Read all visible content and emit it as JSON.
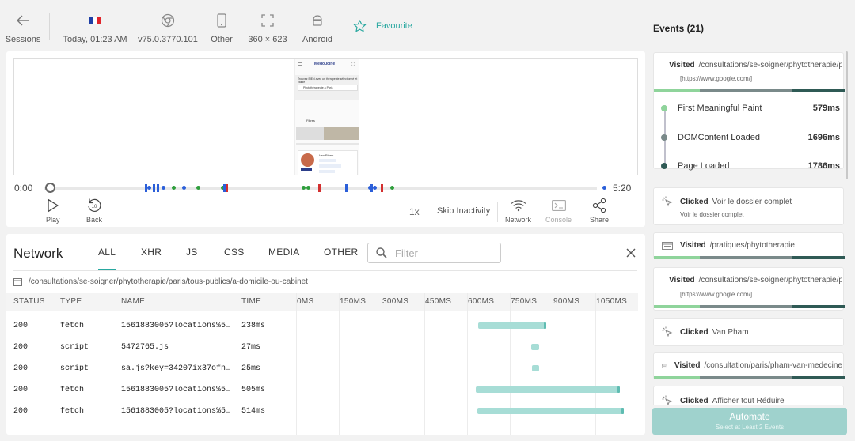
{
  "topbar": {
    "sessions_label": "Sessions",
    "date_label": "Today, 01:23 AM",
    "browser_label": "v75.0.3770.101",
    "device_label": "Other",
    "resolution_label": "360 × 623",
    "os_label": "Android",
    "favourite_label": "Favourite"
  },
  "player": {
    "time_start": "0:00",
    "time_end": "5:20",
    "play_label": "Play",
    "back_label": "Back",
    "back_seconds": "10",
    "speed_label": "1x",
    "skip_label": "Skip Inactivity",
    "network_label": "Network",
    "console_label": "Console",
    "share_label": "Share",
    "preview": {
      "site_name": "Medoucine",
      "search_prompt": "Trouvez BIEN avec un thérapeute sélectionné et validé",
      "search_value": "Phytothérapeute à Paris",
      "section_title": "Filtres",
      "practitioner": "Van Pham"
    }
  },
  "network": {
    "title": "Network",
    "tabs": [
      "ALL",
      "XHR",
      "JS",
      "CSS",
      "MEDIA",
      "OTHER"
    ],
    "active_tab": "ALL",
    "filter_placeholder": "Filter",
    "path": "/consultations/se-soigner/phytotherapie/paris/tous-publics/a-domicile-ou-cabinet",
    "columns": [
      "STATUS",
      "TYPE",
      "NAME",
      "TIME"
    ],
    "waterfall_ticks": [
      "0MS",
      "150MS",
      "300MS",
      "450MS",
      "600MS",
      "750MS",
      "900MS",
      "1050MS"
    ],
    "rows": [
      {
        "status": "200",
        "type": "fetch",
        "name": "1561883005?locations%5…",
        "time": "238ms",
        "start_ms": 640,
        "duration_ms": 238
      },
      {
        "status": "200",
        "type": "script",
        "name": "5472765.js",
        "time": "27ms",
        "start_ms": 825,
        "duration_ms": 27
      },
      {
        "status": "200",
        "type": "script",
        "name": "sa.js?key=34207ix37ofn…",
        "time": "25ms",
        "start_ms": 827,
        "duration_ms": 25
      },
      {
        "status": "200",
        "type": "fetch",
        "name": "1561883005?locations%5…",
        "time": "505ms",
        "start_ms": 630,
        "duration_ms": 505
      },
      {
        "status": "200",
        "type": "fetch",
        "name": "1561883005?locations%5…",
        "time": "514ms",
        "start_ms": 635,
        "duration_ms": 514
      }
    ]
  },
  "events": {
    "title": "Events (21)",
    "items": [
      {
        "type": "Visited",
        "text": "/consultations/se-soigner/phytotherapie/paris",
        "sub": "[https://www.google.com/]"
      },
      {
        "type": "Clicked",
        "text": "Voir le dossier complet",
        "sub": "Voir le dossier complet"
      },
      {
        "type": "Visited",
        "text": "/pratiques/phytotherapie",
        "sub": ""
      },
      {
        "type": "Visited",
        "text": "/consultations/se-soigner/phytotherapie/paris",
        "sub": "[https://www.google.com/]"
      },
      {
        "type": "Clicked",
        "text": "Van Pham",
        "sub": ""
      },
      {
        "type": "Visited",
        "text": "/consultation/paris/pham-van-medecine",
        "sub": ""
      },
      {
        "type": "Clicked",
        "text": "Afficher tout Réduire",
        "sub": ""
      }
    ],
    "metrics": [
      {
        "label": "First Meaningful Paint",
        "value": "579ms",
        "color": "#8fd49b"
      },
      {
        "label": "DOMContent Loaded",
        "value": "1696ms",
        "color": "#7a8a8a"
      },
      {
        "label": "Page Loaded",
        "value": "1786ms",
        "color": "#2f5a55"
      }
    ]
  },
  "automate": {
    "label": "Automate",
    "hint": "Select at Least 2 Events"
  },
  "colors": {
    "accent": "#29a8a0",
    "waterfall_bar": "#a7ddd6",
    "timeline_green": "#2e9e3c",
    "timeline_blue": "#2b5fd9",
    "timeline_red": "#d32f2f"
  }
}
